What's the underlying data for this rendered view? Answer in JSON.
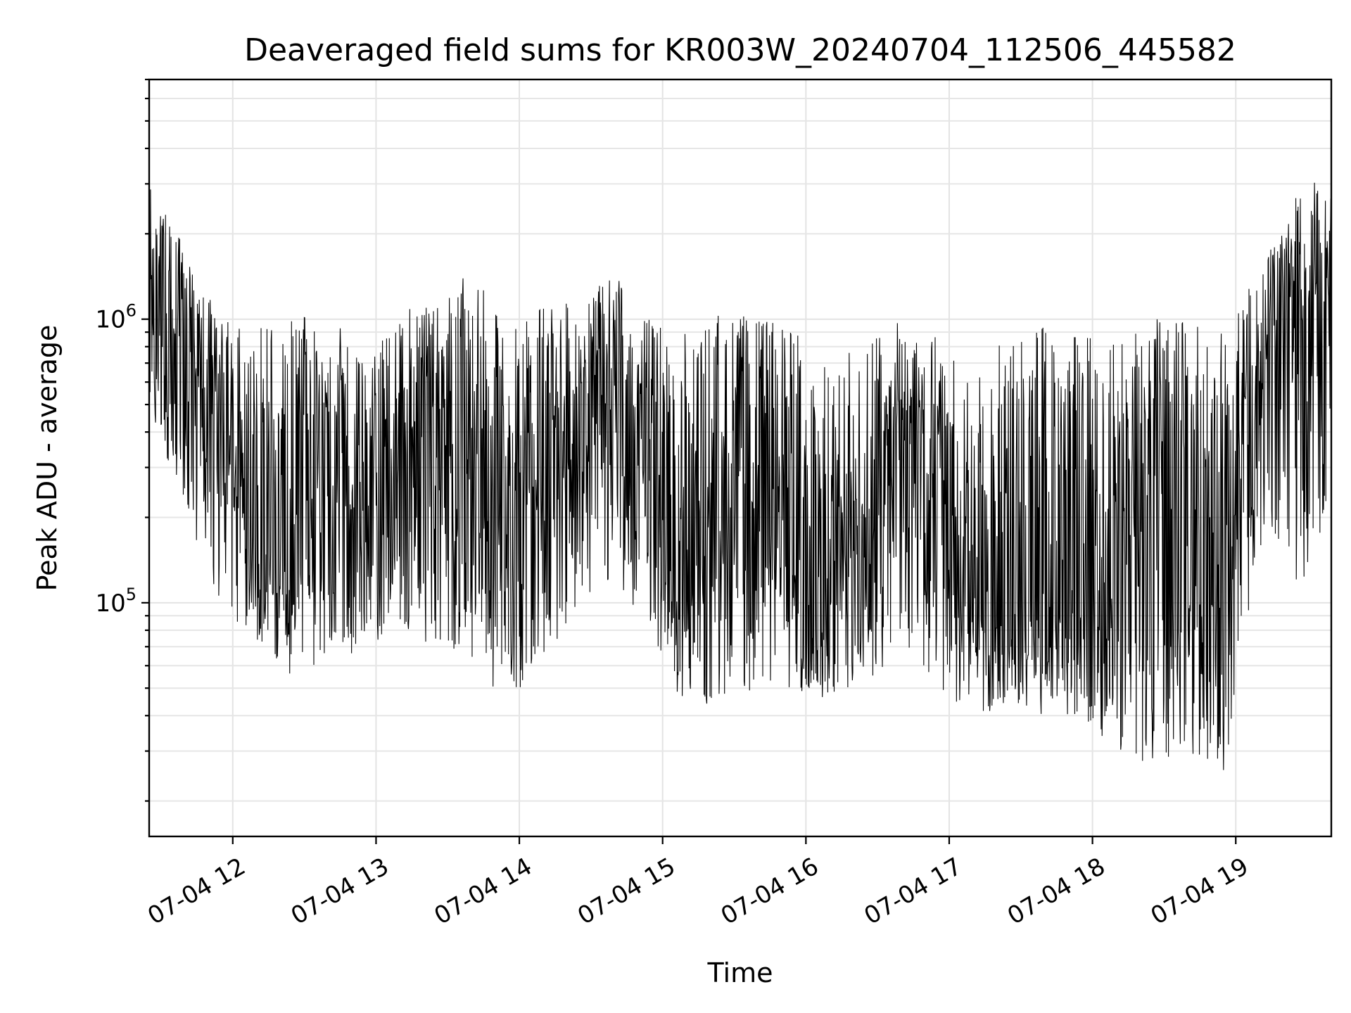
{
  "chart_data": {
    "type": "line",
    "title": "Deaveraged field sums for KR003W_20240704_112506_445582",
    "xlabel": "Time",
    "ylabel": "Peak ADU - average",
    "yscale": "log",
    "grid": true,
    "x_range": [
      "2024-07-04 11:25",
      "2024-07-04 19:40"
    ],
    "ylim": [
      15000,
      7000000
    ],
    "x_ticks": [
      {
        "time": "2024-07-04 12:00",
        "label": "07-04 12"
      },
      {
        "time": "2024-07-04 13:00",
        "label": "07-04 13"
      },
      {
        "time": "2024-07-04 14:00",
        "label": "07-04 14"
      },
      {
        "time": "2024-07-04 15:00",
        "label": "07-04 15"
      },
      {
        "time": "2024-07-04 16:00",
        "label": "07-04 16"
      },
      {
        "time": "2024-07-04 17:00",
        "label": "07-04 17"
      },
      {
        "time": "2024-07-04 18:00",
        "label": "07-04 18"
      },
      {
        "time": "2024-07-04 19:00",
        "label": "07-04 19"
      }
    ],
    "y_ticks": [
      {
        "value": 100000,
        "base": "10",
        "exponent": "5"
      },
      {
        "value": 1000000,
        "base": "10",
        "exponent": "6"
      }
    ],
    "series": [
      {
        "color": "#000000",
        "points": [
          {
            "x": "2024-07-04 11:25",
            "y": 700000,
            "low": 500000,
            "high": 3000000
          },
          {
            "x": "2024-07-04 11:40",
            "y": 700000,
            "low": 200000,
            "high": 1800000
          },
          {
            "x": "2024-07-04 11:55",
            "y": 400000,
            "low": 100000,
            "high": 1000000
          },
          {
            "x": "2024-07-04 12:10",
            "y": 150000,
            "low": 70000,
            "high": 1000000
          },
          {
            "x": "2024-07-04 12:25",
            "y": 200000,
            "low": 55000,
            "high": 1000000
          },
          {
            "x": "2024-07-04 12:40",
            "y": 350000,
            "low": 60000,
            "high": 1100000
          },
          {
            "x": "2024-07-04 12:55",
            "y": 150000,
            "low": 70000,
            "high": 700000
          },
          {
            "x": "2024-07-04 13:10",
            "y": 300000,
            "low": 80000,
            "high": 1100000
          },
          {
            "x": "2024-07-04 13:25",
            "y": 500000,
            "low": 70000,
            "high": 1100000
          },
          {
            "x": "2024-07-04 13:40",
            "y": 350000,
            "low": 60000,
            "high": 1500000
          },
          {
            "x": "2024-07-04 13:55",
            "y": 150000,
            "low": 45000,
            "high": 900000
          },
          {
            "x": "2024-07-04 14:10",
            "y": 400000,
            "low": 60000,
            "high": 1200000
          },
          {
            "x": "2024-07-04 14:25",
            "y": 400000,
            "low": 100000,
            "high": 1100000
          },
          {
            "x": "2024-07-04 14:40",
            "y": 450000,
            "low": 120000,
            "high": 1500000
          },
          {
            "x": "2024-07-04 14:55",
            "y": 300000,
            "low": 80000,
            "high": 1000000
          },
          {
            "x": "2024-07-04 15:10",
            "y": 110000,
            "low": 40000,
            "high": 900000
          },
          {
            "x": "2024-07-04 15:25",
            "y": 200000,
            "low": 45000,
            "high": 1100000
          },
          {
            "x": "2024-07-04 15:40",
            "y": 250000,
            "low": 50000,
            "high": 1000000
          },
          {
            "x": "2024-07-04 15:55",
            "y": 130000,
            "low": 50000,
            "high": 1000000
          },
          {
            "x": "2024-07-04 16:10",
            "y": 80000,
            "low": 40000,
            "high": 650000
          },
          {
            "x": "2024-07-04 16:25",
            "y": 150000,
            "low": 50000,
            "high": 900000
          },
          {
            "x": "2024-07-04 16:40",
            "y": 400000,
            "low": 70000,
            "high": 1000000
          },
          {
            "x": "2024-07-04 16:55",
            "y": 300000,
            "low": 50000,
            "high": 900000
          },
          {
            "x": "2024-07-04 17:10",
            "y": 100000,
            "low": 40000,
            "high": 600000
          },
          {
            "x": "2024-07-04 17:25",
            "y": 80000,
            "low": 40000,
            "high": 900000
          },
          {
            "x": "2024-07-04 17:40",
            "y": 120000,
            "low": 40000,
            "high": 1000000
          },
          {
            "x": "2024-07-04 17:55",
            "y": 100000,
            "low": 40000,
            "high": 900000
          },
          {
            "x": "2024-07-04 18:10",
            "y": 150000,
            "low": 30000,
            "high": 1000000
          },
          {
            "x": "2024-07-04 18:25",
            "y": 200000,
            "low": 25000,
            "high": 1000000
          },
          {
            "x": "2024-07-04 18:40",
            "y": 150000,
            "low": 30000,
            "high": 1000000
          },
          {
            "x": "2024-07-04 18:55",
            "y": 120000,
            "low": 25000,
            "high": 900000
          },
          {
            "x": "2024-07-04 19:10",
            "y": 600000,
            "low": 150000,
            "high": 1500000
          },
          {
            "x": "2024-07-04 19:25",
            "y": 900000,
            "low": 100000,
            "high": 2700000
          },
          {
            "x": "2024-07-04 19:40",
            "y": 1200000,
            "low": 200000,
            "high": 3500000
          }
        ]
      }
    ]
  }
}
